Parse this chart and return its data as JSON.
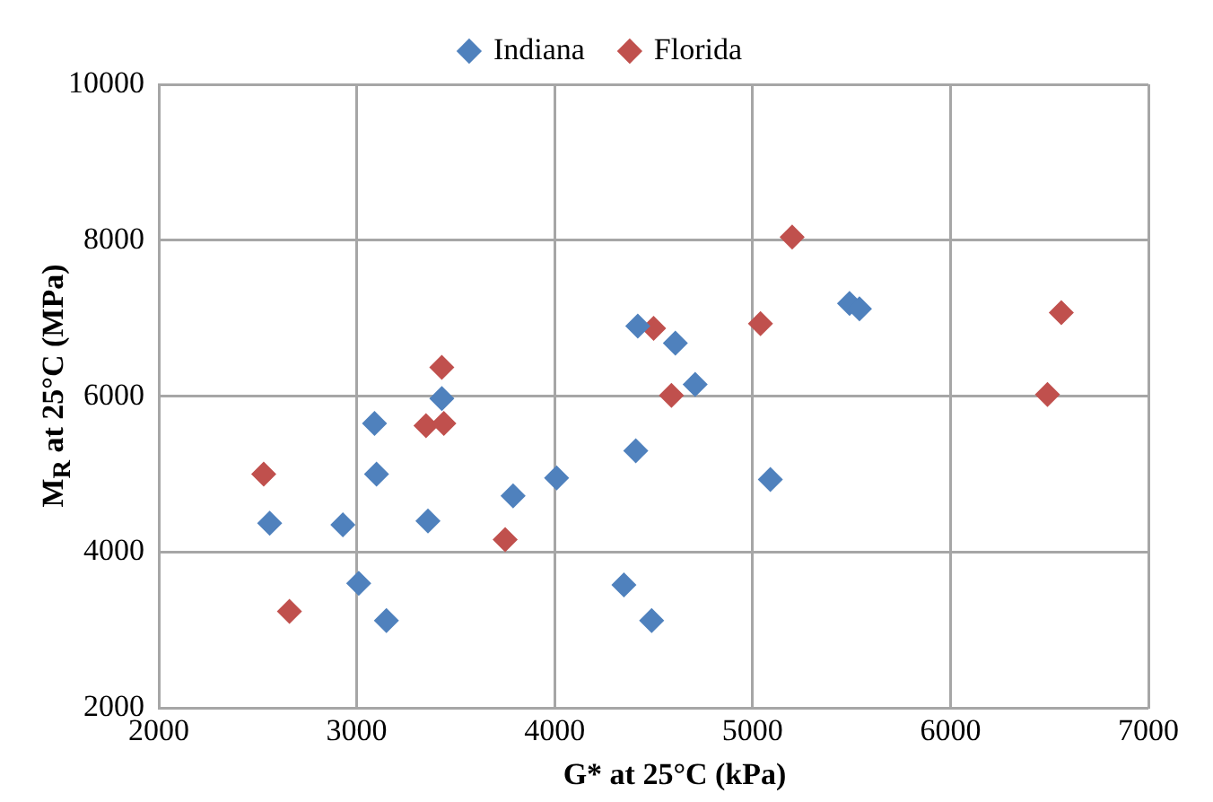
{
  "chart_data": {
    "type": "scatter",
    "xlabel": "G* at 25°C (kPa)",
    "ylabel": "M$_{R}$ at 25°C (MPa)",
    "xlim": [
      2000,
      7000
    ],
    "xticks": [
      2000,
      3000,
      4000,
      5000,
      6000,
      7000
    ],
    "ylim": [
      2000,
      10000
    ],
    "yticks": [
      2000,
      4000,
      6000,
      8000,
      10000
    ],
    "grid": true,
    "legend": "top",
    "marker": "diamond",
    "series": [
      {
        "name": "Indiana",
        "color": "#4f81bd",
        "x": [
          2560,
          2930,
          3010,
          3090,
          3100,
          3150,
          3360,
          3430,
          3790,
          4010,
          4350,
          4410,
          4420,
          4490,
          4610,
          4710,
          5090,
          5490,
          5540
        ],
        "values": [
          4370,
          4350,
          3600,
          5650,
          5000,
          3120,
          4400,
          5970,
          4720,
          4950,
          3580,
          5300,
          6900,
          3120,
          6680,
          6150,
          4930,
          7190,
          7120
        ]
      },
      {
        "name": "Florida",
        "color": "#c0504d",
        "x": [
          2530,
          2660,
          3350,
          3430,
          3440,
          3750,
          4500,
          4590,
          5040,
          5200,
          6490,
          6560
        ],
        "values": [
          5000,
          3240,
          5620,
          6370,
          5650,
          4160,
          6870,
          6010,
          6930,
          8040,
          6020,
          7070
        ]
      }
    ]
  }
}
